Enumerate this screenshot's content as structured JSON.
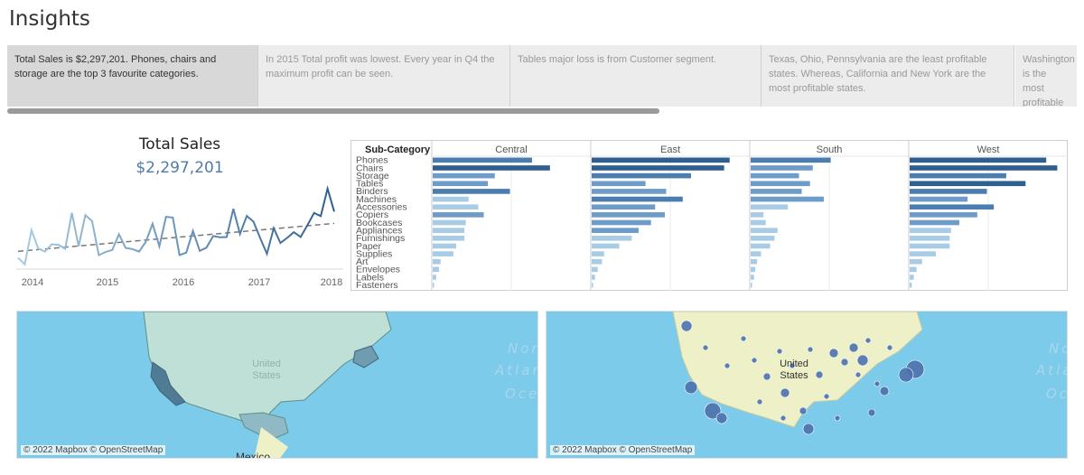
{
  "page": {
    "title": "Insights"
  },
  "story": {
    "cards": [
      {
        "text": "Total Sales is $2,297,201. Phones, chairs and storage are the top 3 favourite categories.",
        "active": true
      },
      {
        "text": "In 2015 Total profit was lowest. Every year in Q4 the maximum profit can be seen.",
        "active": false
      },
      {
        "text": "Tables major loss is from Customer segment.",
        "active": false
      },
      {
        "text": "Texas, Ohio, Pennsylvania are the least profitable states. Whereas, California and New York are the most profitable states.",
        "active": false
      },
      {
        "text": "Washington is the most profitable ..",
        "active": false
      }
    ]
  },
  "total_sales": {
    "title": "Total Sales",
    "value": "$2,297,201"
  },
  "colors": {
    "accent": "#4e7ca7",
    "bar_light": "#a8cce6",
    "bar_dark": "#2f5f8f",
    "ocean": "#7ccbea",
    "land": "#eef0c8",
    "state_fill": "#bfe0d7"
  },
  "chart_data": [
    {
      "type": "line",
      "title": "Total Sales",
      "x_ticks": [
        "2014",
        "2015",
        "2016",
        "2017",
        "2018"
      ],
      "x": [
        0,
        1,
        2,
        3,
        4,
        5,
        6,
        7,
        8,
        9,
        10,
        11,
        12,
        13,
        14,
        15,
        16,
        17,
        18,
        19,
        20,
        21,
        22,
        23,
        24,
        25,
        26,
        27,
        28,
        29,
        30,
        31,
        32,
        33,
        34,
        35,
        36,
        37,
        38,
        39,
        40,
        41,
        42,
        43,
        44,
        45,
        46,
        47
      ],
      "values": [
        14200,
        4500,
        55700,
        28300,
        23600,
        34600,
        33900,
        27900,
        81800,
        31500,
        78600,
        69500,
        18200,
        22900,
        26100,
        49700,
        29100,
        27400,
        23700,
        38600,
        65500,
        31500,
        75900,
        74900,
        18500,
        22000,
        54800,
        24700,
        29500,
        47000,
        45300,
        45500,
        87900,
        50200,
        77300,
        68600,
        43900,
        20300,
        58900,
        36500,
        44300,
        52900,
        45600,
        63100,
        81800,
        77000,
        118400,
        83800
      ],
      "trend": {
        "start": 24000,
        "end": 66000
      },
      "ylim": [
        0,
        125000
      ]
    },
    {
      "type": "bar",
      "row_header": "Sub-Category",
      "categories": [
        "Phones",
        "Chairs",
        "Storage",
        "Tables",
        "Binders",
        "Machines",
        "Accessories",
        "Copiers",
        "Bookcases",
        "Appliances",
        "Furnishings",
        "Paper",
        "Supplies",
        "Art",
        "Envelopes",
        "Labels",
        "Fasteners"
      ],
      "series": [
        {
          "name": "Central",
          "values": [
            72000,
            85000,
            45000,
            40000,
            56000,
            26000,
            33000,
            37000,
            24000,
            23000,
            23000,
            17000,
            15000,
            5700,
            4600,
            2500,
            800
          ]
        },
        {
          "name": "East",
          "values": [
            100000,
            96000,
            72000,
            39000,
            54000,
            66000,
            46000,
            53000,
            43000,
            34000,
            29000,
            20000,
            9000,
            7500,
            4400,
            2400,
            900
          ]
        },
        {
          "name": "South",
          "values": [
            58000,
            45000,
            35000,
            43000,
            37000,
            53000,
            27000,
            9300,
            10900,
            19500,
            17300,
            14100,
            7500,
            4700,
            3300,
            2400,
            500
          ]
        },
        {
          "name": "West",
          "values": [
            99000,
            107000,
            70000,
            84000,
            56000,
            42000,
            61000,
            49000,
            36000,
            30000,
            29000,
            29000,
            19000,
            9000,
            5000,
            3000,
            1500
          ]
        }
      ],
      "xlim": [
        0,
        110000
      ]
    }
  ],
  "maps": {
    "filled": {
      "attribution": "© 2022 Mapbox © OpenStreetMap",
      "country_label": "United States",
      "label_mexico": "Mexico",
      "ocean_labels": [
        "Nor",
        "Atlan",
        "Oce"
      ]
    },
    "symbol": {
      "attribution": "© 2022 Mapbox © OpenStreetMap",
      "country_label": "United States",
      "ocean_labels": [
        "No",
        "Atla",
        "Oc"
      ]
    }
  }
}
